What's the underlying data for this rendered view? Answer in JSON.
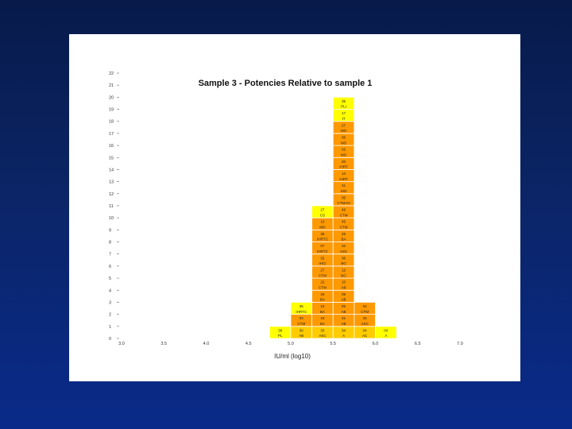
{
  "slide": {
    "background": "#0b2566"
  },
  "chart_data": {
    "type": "bar",
    "title": "Sample 3 - Potencies Relative to sample 1",
    "xlabel": "IU/ml (log10)",
    "ylabel": "",
    "x_tick_labels": [
      "3.0",
      "3.5",
      "4.0",
      "4.5",
      "5.0",
      "5.5",
      "6.0",
      "6.5",
      "7.0"
    ],
    "x_ticks": [
      3.0,
      3.5,
      4.0,
      4.5,
      5.0,
      5.5,
      6.0,
      6.5,
      7.0
    ],
    "y_tick_labels": [
      "0",
      "1",
      "2",
      "3",
      "4",
      "5",
      "6",
      "7",
      "8",
      "9",
      "10",
      "11",
      "12",
      "13",
      "14",
      "15",
      "16",
      "17",
      "18",
      "19",
      "20",
      "21",
      "22"
    ],
    "xlim": [
      3.0,
      7.0
    ],
    "ylim": [
      0,
      22
    ],
    "bin_width": 0.25,
    "colors": {
      "yellow": "#ffff00",
      "orange": "#ff9900",
      "gold": "#ffcc00"
    },
    "columns": [
      {
        "bin_start": 4.75,
        "cells": [
          {
            "num": "38",
            "code": "PL",
            "color": "yellow"
          }
        ]
      },
      {
        "bin_start": 5.0,
        "cells": [
          {
            "num": "30",
            "code": "AB",
            "color": "gold"
          },
          {
            "num": "02",
            "code": "CTM",
            "color": "orange"
          },
          {
            "num": "35",
            "code": "IHRTC",
            "color": "yellow"
          }
        ]
      },
      {
        "bin_start": 5.25,
        "cells": [
          {
            "num": "33",
            "code": "ASC",
            "color": "gold"
          },
          {
            "num": "18",
            "code": "BA",
            "color": "orange"
          },
          {
            "num": "18",
            "code": "BA",
            "color": "orange"
          },
          {
            "num": "26",
            "code": "BA",
            "color": "orange"
          },
          {
            "num": "22",
            "code": "CTM",
            "color": "orange"
          },
          {
            "num": "27",
            "code": "CTM",
            "color": "orange"
          },
          {
            "num": "32",
            "code": "IHCI",
            "color": "orange"
          },
          {
            "num": "07",
            "code": "IHRTC",
            "color": "orange"
          },
          {
            "num": "35",
            "code": "IHRTC",
            "color": "orange"
          },
          {
            "num": "10",
            "code": "MO",
            "color": "orange"
          },
          {
            "num": "27",
            "code": "CS",
            "color": "yellow"
          }
        ]
      },
      {
        "bin_start": 5.5,
        "cells": [
          {
            "num": "34",
            "code": "A",
            "color": "gold"
          },
          {
            "num": "31",
            "code": "AB",
            "color": "orange"
          },
          {
            "num": "05",
            "code": "AB",
            "color": "orange"
          },
          {
            "num": "09",
            "code": "AB",
            "color": "orange"
          },
          {
            "num": "10",
            "code": "AB",
            "color": "orange"
          },
          {
            "num": "12",
            "code": "BG",
            "color": "orange"
          },
          {
            "num": "36",
            "code": "BG",
            "color": "orange"
          },
          {
            "num": "32",
            "code": "ASC",
            "color": "orange"
          },
          {
            "num": "25",
            "code": "BA",
            "color": "orange"
          },
          {
            "num": "45",
            "code": "CTM",
            "color": "orange"
          },
          {
            "num": "48",
            "code": "CTM",
            "color": "orange"
          },
          {
            "num": "05",
            "code": "CTMAN",
            "color": "orange"
          },
          {
            "num": "31",
            "code": "IHD",
            "color": "orange"
          },
          {
            "num": "14",
            "code": "IHRT",
            "color": "orange"
          },
          {
            "num": "20",
            "code": "IHRT",
            "color": "orange"
          },
          {
            "num": "02",
            "code": "MO",
            "color": "orange"
          },
          {
            "num": "05",
            "code": "MO",
            "color": "orange"
          },
          {
            "num": "27",
            "code": "MO",
            "color": "orange"
          },
          {
            "num": "17",
            "code": "IT",
            "color": "yellow"
          },
          {
            "num": "35",
            "code": "PLI",
            "color": "yellow"
          }
        ]
      },
      {
        "bin_start": 5.75,
        "cells": [
          {
            "num": "04",
            "code": "AC",
            "color": "gold"
          },
          {
            "num": "34",
            "code": "ASC",
            "color": "orange"
          },
          {
            "num": "04",
            "code": "CTM",
            "color": "orange"
          }
        ]
      },
      {
        "bin_start": 6.0,
        "cells": [
          {
            "num": "04",
            "code": "A",
            "color": "yellow"
          }
        ]
      }
    ]
  }
}
